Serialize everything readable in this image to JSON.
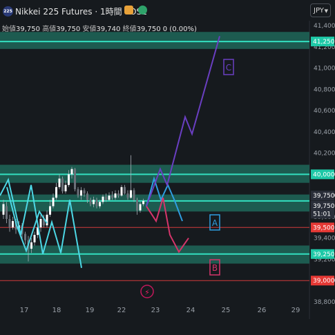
{
  "header": {
    "symbol_badge": "225",
    "title": "Nikkei 225 Futures · 1時間 · OSE",
    "ohlc": [
      {
        "label": "始値",
        "value": "39,750"
      },
      {
        "label": "高値",
        "value": "39,750"
      },
      {
        "label": "安値",
        "value": "39,740"
      },
      {
        "label": "終値",
        "value": "39,750"
      }
    ],
    "change": "0 (0.00%)",
    "currency": "JPY",
    "colors": {
      "badge": "#2a3b78",
      "orange_icon": "#e8a23a",
      "green_icon": "#2ea36a"
    }
  },
  "chart_data": {
    "type": "candlestick",
    "y_range": [
      38750,
      41500
    ],
    "x_labels": [
      "17",
      "18",
      "19",
      "22",
      "23",
      "24",
      "25",
      "26",
      "29"
    ],
    "y_ticks": [
      "41,400",
      "41,200",
      "41,000",
      "40,800",
      "40,600",
      "40,400",
      "40,200",
      "40,000",
      "39,800",
      "39,600",
      "39,400",
      "39,200",
      "39,000",
      "38,800"
    ],
    "price_badges": [
      {
        "text": "41,250",
        "price": 41250,
        "color": "#1ec8a7"
      },
      {
        "text": "40,000",
        "price": 40000,
        "color": "#1ec8a7"
      },
      {
        "text": "39,750",
        "price": 39800,
        "color": "#2a2e39"
      },
      {
        "text": "39,750",
        "price": 39705,
        "color": "#2a2e39"
      },
      {
        "text": "51:01",
        "price": 39630,
        "color": "#2a2e39"
      },
      {
        "text": "39,500",
        "price": 39500,
        "color": "#e53935"
      },
      {
        "text": "39,250",
        "price": 39250,
        "color": "#1ec8a7"
      },
      {
        "text": "39,000",
        "price": 39000,
        "color": "#e53935"
      }
    ],
    "zones": [
      {
        "from": 41180,
        "to": 41340
      },
      {
        "from": 39920,
        "to": 40090
      },
      {
        "from": 39650,
        "to": 39810
      },
      {
        "from": 39160,
        "to": 39330
      }
    ],
    "zone_lines": [
      41250,
      40000,
      39750,
      39250
    ],
    "support_resistance_red": [
      39500,
      39000
    ],
    "scenarios": [
      {
        "label": "A",
        "color": "#2f9ee0"
      },
      {
        "label": "B",
        "color": "#d6356b"
      },
      {
        "label": "C",
        "color": "#6a3fc2"
      }
    ],
    "candle_color_up": "#ffffff",
    "candle_color_down": "#2a2e35"
  }
}
